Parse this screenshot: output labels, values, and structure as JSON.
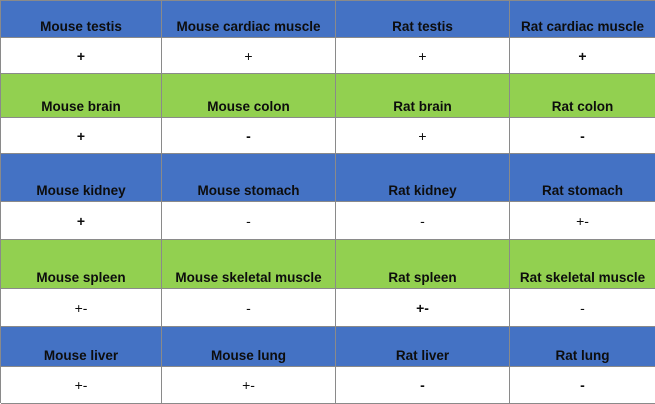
{
  "rows": [
    {
      "color": "#4472c4",
      "headers": [
        "Mouse testis",
        "Mouse cardiac muscle",
        "Rat testis",
        "Rat cardiac muscle"
      ],
      "values": [
        "+",
        "+",
        "+",
        "+"
      ],
      "bold": [
        true,
        false,
        false,
        true
      ]
    },
    {
      "color": "#92d050",
      "headers": [
        "Mouse brain",
        "Mouse colon",
        "Rat brain",
        "Rat colon"
      ],
      "values": [
        "+",
        "-",
        "+",
        "-"
      ],
      "bold": [
        true,
        true,
        false,
        true
      ]
    },
    {
      "color": "#4472c4",
      "headers": [
        "Mouse kidney",
        "Mouse stomach",
        "Rat kidney",
        "Rat stomach"
      ],
      "values": [
        "+",
        "-",
        "-",
        "+-"
      ],
      "bold": [
        true,
        false,
        false,
        false
      ]
    },
    {
      "color": "#92d050",
      "headers": [
        "Mouse spleen",
        "Mouse skeletal muscle",
        "Rat spleen",
        "Rat skeletal muscle"
      ],
      "values": [
        "+-",
        "-",
        "+-",
        "-"
      ],
      "bold": [
        false,
        false,
        true,
        false
      ]
    },
    {
      "color": "#4472c4",
      "headers": [
        "Mouse liver",
        "Mouse lung",
        "Rat liver",
        "Rat lung"
      ],
      "values": [
        "+-",
        "+-",
        "-",
        "-"
      ],
      "bold": [
        false,
        false,
        true,
        true
      ]
    }
  ]
}
